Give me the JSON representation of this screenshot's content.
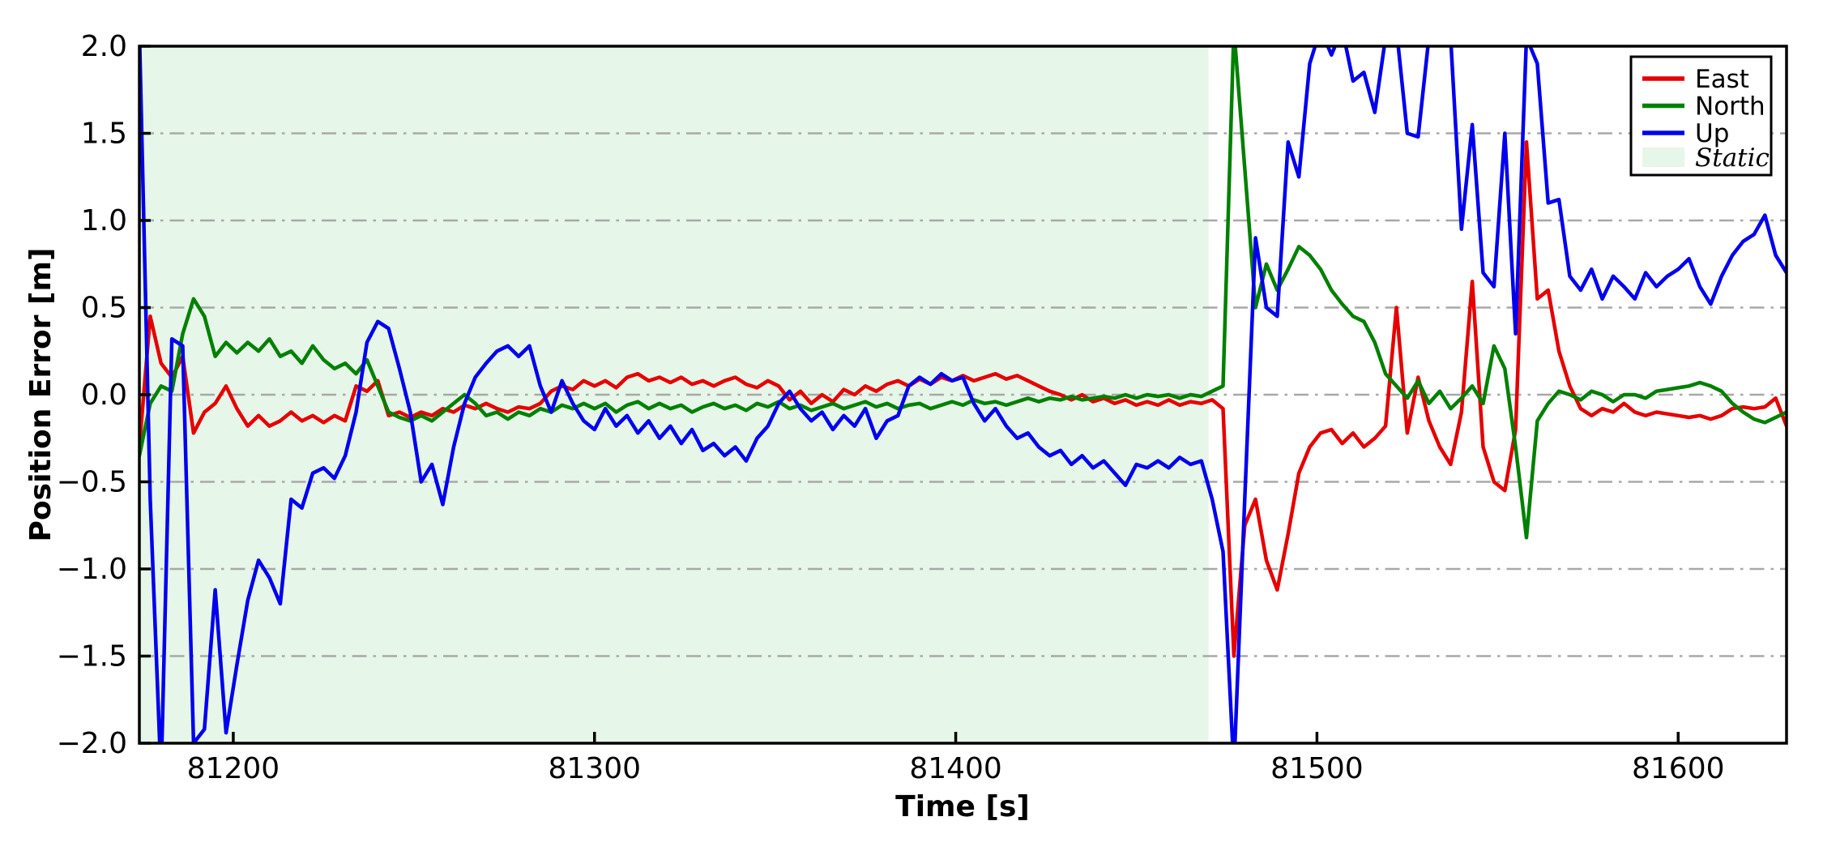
{
  "figure": {
    "background": "#ffffff",
    "frame_color": "#000000",
    "grid_color": "#a8a8a8",
    "grid_style": "dash-dot"
  },
  "chart_data": {
    "type": "line",
    "title": "",
    "xlabel": "Time [s]",
    "ylabel": "Position Error [m]",
    "xlim": [
      81174,
      81630
    ],
    "ylim": [
      -2.0,
      2.0
    ],
    "xticks": [
      81200,
      81300,
      81400,
      81500,
      81600
    ],
    "xtick_labels": [
      "81200",
      "81300",
      "81400",
      "81500",
      "81600"
    ],
    "yticks": [
      -2.0,
      -1.5,
      -1.0,
      -0.5,
      0.0,
      0.5,
      1.0,
      1.5,
      2.0
    ],
    "ytick_labels": [
      "−2.0",
      "−1.5",
      "−1.0",
      "−0.5",
      "0.0",
      "0.5",
      "1.0",
      "1.5",
      "2.0"
    ],
    "grid": "horizontal dash-dot, gray, at every 0.5 m",
    "legend": {
      "position": "upper right",
      "entries": [
        {
          "label": "East",
          "color": "#e60000",
          "type": "line"
        },
        {
          "label": "North",
          "color": "#008000",
          "type": "line"
        },
        {
          "label": "Up",
          "color": "#0000ee",
          "type": "line"
        },
        {
          "label": "Static",
          "color": "#e6f6e8",
          "type": "patch",
          "italic": true
        }
      ]
    },
    "static_region": {
      "label": "Static",
      "x_start": 81174,
      "x_end": 81470,
      "color": "#e6f6e8"
    },
    "x": [
      81174,
      81177,
      81180,
      81183,
      81186,
      81189,
      81192,
      81195,
      81198,
      81201,
      81204,
      81207,
      81210,
      81213,
      81216,
      81219,
      81222,
      81225,
      81228,
      81231,
      81234,
      81237,
      81240,
      81243,
      81246,
      81249,
      81252,
      81255,
      81258,
      81261,
      81264,
      81267,
      81270,
      81273,
      81276,
      81279,
      81282,
      81285,
      81288,
      81291,
      81294,
      81297,
      81300,
      81303,
      81306,
      81309,
      81312,
      81315,
      81318,
      81321,
      81324,
      81327,
      81330,
      81333,
      81336,
      81339,
      81342,
      81345,
      81348,
      81351,
      81354,
      81357,
      81360,
      81363,
      81366,
      81369,
      81372,
      81375,
      81378,
      81381,
      81384,
      81387,
      81390,
      81393,
      81396,
      81399,
      81402,
      81405,
      81408,
      81411,
      81414,
      81417,
      81420,
      81423,
      81426,
      81429,
      81432,
      81435,
      81438,
      81441,
      81444,
      81447,
      81450,
      81453,
      81456,
      81459,
      81462,
      81465,
      81468,
      81471,
      81474,
      81477,
      81480,
      81483,
      81486,
      81489,
      81492,
      81495,
      81498,
      81501,
      81504,
      81507,
      81510,
      81513,
      81516,
      81519,
      81522,
      81525,
      81528,
      81531,
      81534,
      81537,
      81540,
      81543,
      81546,
      81549,
      81552,
      81555,
      81558,
      81561,
      81564,
      81567,
      81570,
      81573,
      81576,
      81579,
      81582,
      81585,
      81588,
      81591,
      81594,
      81597,
      81600,
      81603,
      81606,
      81609,
      81612,
      81615,
      81618,
      81621,
      81624,
      81627,
      81630
    ],
    "series": [
      {
        "name": "East",
        "color": "#e60000",
        "values": [
          -0.3,
          0.45,
          0.18,
          0.1,
          0.22,
          -0.22,
          -0.1,
          -0.05,
          0.05,
          -0.08,
          -0.18,
          -0.12,
          -0.18,
          -0.15,
          -0.1,
          -0.15,
          -0.12,
          -0.16,
          -0.12,
          -0.15,
          0.05,
          0.02,
          0.08,
          -0.12,
          -0.1,
          -0.13,
          -0.1,
          -0.12,
          -0.08,
          -0.1,
          -0.06,
          -0.08,
          -0.05,
          -0.08,
          -0.1,
          -0.07,
          -0.08,
          -0.05,
          0.02,
          0.05,
          0.03,
          0.08,
          0.05,
          0.08,
          0.04,
          0.1,
          0.12,
          0.08,
          0.1,
          0.07,
          0.1,
          0.06,
          0.08,
          0.05,
          0.08,
          0.1,
          0.06,
          0.04,
          0.08,
          0.05,
          -0.03,
          0.02,
          -0.05,
          0.0,
          -0.04,
          0.03,
          0.0,
          0.05,
          0.02,
          0.06,
          0.08,
          0.05,
          0.09,
          0.06,
          0.1,
          0.08,
          0.11,
          0.08,
          0.1,
          0.12,
          0.09,
          0.11,
          0.08,
          0.05,
          0.02,
          0.0,
          -0.03,
          0.0,
          -0.04,
          -0.02,
          -0.05,
          -0.03,
          -0.06,
          -0.04,
          -0.06,
          -0.03,
          -0.06,
          -0.04,
          -0.05,
          -0.03,
          -0.08,
          -1.5,
          -0.75,
          -0.6,
          -0.95,
          -1.12,
          -0.8,
          -0.45,
          -0.3,
          -0.22,
          -0.2,
          -0.28,
          -0.22,
          -0.3,
          -0.25,
          -0.18,
          0.5,
          -0.22,
          0.1,
          -0.15,
          -0.3,
          -0.4,
          -0.1,
          0.65,
          -0.3,
          -0.5,
          -0.55,
          -0.2,
          1.45,
          0.55,
          0.6,
          0.25,
          0.05,
          -0.08,
          -0.12,
          -0.08,
          -0.1,
          -0.05,
          -0.1,
          -0.12,
          -0.1,
          -0.11,
          -0.12,
          -0.13,
          -0.12,
          -0.14,
          -0.12,
          -0.08,
          -0.07,
          -0.08,
          -0.07,
          -0.02,
          -0.18
        ]
      },
      {
        "name": "North",
        "color": "#008000",
        "values": [
          -0.35,
          -0.05,
          0.05,
          0.02,
          0.35,
          0.55,
          0.45,
          0.22,
          0.3,
          0.24,
          0.3,
          0.25,
          0.32,
          0.22,
          0.25,
          0.18,
          0.28,
          0.2,
          0.15,
          0.18,
          0.12,
          0.2,
          0.05,
          -0.1,
          -0.13,
          -0.15,
          -0.12,
          -0.15,
          -0.1,
          -0.05,
          0.0,
          -0.05,
          -0.12,
          -0.1,
          -0.14,
          -0.1,
          -0.12,
          -0.08,
          -0.1,
          -0.06,
          -0.08,
          -0.05,
          -0.08,
          -0.05,
          -0.1,
          -0.06,
          -0.04,
          -0.08,
          -0.05,
          -0.08,
          -0.06,
          -0.1,
          -0.07,
          -0.05,
          -0.08,
          -0.06,
          -0.09,
          -0.05,
          -0.07,
          -0.04,
          -0.08,
          -0.06,
          -0.09,
          -0.07,
          -0.05,
          -0.08,
          -0.06,
          -0.04,
          -0.07,
          -0.05,
          -0.08,
          -0.06,
          -0.05,
          -0.08,
          -0.06,
          -0.04,
          -0.06,
          -0.03,
          -0.05,
          -0.04,
          -0.06,
          -0.04,
          -0.02,
          -0.04,
          -0.02,
          -0.03,
          -0.01,
          -0.03,
          -0.02,
          -0.01,
          -0.02,
          0.0,
          -0.02,
          0.0,
          -0.01,
          0.0,
          -0.02,
          0.0,
          -0.01,
          0.02,
          0.05,
          2.1,
          1.3,
          0.5,
          0.75,
          0.6,
          0.72,
          0.85,
          0.8,
          0.72,
          0.6,
          0.52,
          0.45,
          0.42,
          0.3,
          0.12,
          0.05,
          -0.02,
          0.08,
          -0.05,
          0.02,
          -0.08,
          -0.02,
          0.05,
          -0.05,
          0.28,
          0.15,
          -0.3,
          -0.82,
          -0.15,
          -0.05,
          0.02,
          0.0,
          -0.03,
          0.02,
          0.0,
          -0.04,
          0.0,
          0.0,
          -0.02,
          0.02,
          0.03,
          0.04,
          0.05,
          0.07,
          0.05,
          0.02,
          -0.05,
          -0.1,
          -0.14,
          -0.16,
          -0.13,
          -0.1
        ]
      },
      {
        "name": "Up",
        "color": "#0000ee",
        "values": [
          2.1,
          -0.6,
          -2.2,
          0.32,
          0.28,
          -2.0,
          -1.92,
          -1.12,
          -1.94,
          -1.55,
          -1.18,
          -0.95,
          -1.05,
          -1.2,
          -0.6,
          -0.65,
          -0.45,
          -0.42,
          -0.48,
          -0.35,
          -0.1,
          0.3,
          0.42,
          0.38,
          0.15,
          -0.1,
          -0.5,
          -0.4,
          -0.63,
          -0.3,
          -0.05,
          0.1,
          0.18,
          0.25,
          0.28,
          0.22,
          0.28,
          0.05,
          -0.1,
          0.08,
          -0.05,
          -0.15,
          -0.2,
          -0.08,
          -0.18,
          -0.12,
          -0.22,
          -0.15,
          -0.25,
          -0.18,
          -0.28,
          -0.2,
          -0.32,
          -0.28,
          -0.35,
          -0.3,
          -0.38,
          -0.25,
          -0.18,
          -0.05,
          0.02,
          -0.08,
          -0.15,
          -0.1,
          -0.2,
          -0.12,
          -0.18,
          -0.08,
          -0.25,
          -0.15,
          -0.12,
          0.05,
          0.1,
          0.06,
          0.12,
          0.08,
          0.1,
          -0.05,
          -0.15,
          -0.08,
          -0.18,
          -0.25,
          -0.22,
          -0.3,
          -0.35,
          -0.32,
          -0.4,
          -0.35,
          -0.42,
          -0.38,
          -0.45,
          -0.52,
          -0.4,
          -0.42,
          -0.38,
          -0.42,
          -0.36,
          -0.4,
          -0.38,
          -0.6,
          -0.9,
          -2.15,
          -0.6,
          0.9,
          0.5,
          0.45,
          1.45,
          1.25,
          1.9,
          2.1,
          1.95,
          2.1,
          1.8,
          1.85,
          1.62,
          2.05,
          2.1,
          1.5,
          1.48,
          2.05,
          2.1,
          2.05,
          0.95,
          1.55,
          0.7,
          0.62,
          1.5,
          0.35,
          2.05,
          1.9,
          1.1,
          1.12,
          0.68,
          0.6,
          0.72,
          0.55,
          0.68,
          0.62,
          0.55,
          0.7,
          0.62,
          0.68,
          0.72,
          0.78,
          0.62,
          0.52,
          0.68,
          0.8,
          0.88,
          0.92,
          1.03,
          0.8,
          0.7
        ]
      }
    ]
  }
}
